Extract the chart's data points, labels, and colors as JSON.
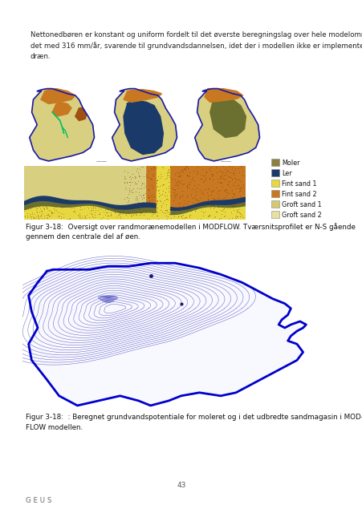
{
  "body_text": "Nettonedbøren er konstant og uniform fordelt til det øverste beregningslag over hele modelområ-\ndet med 316 mm/år, svarende til grundvandsdannelsen, idet der i modellen ikke er implementeret\ndræn.",
  "fig_caption_1": "Figur 3-18:  Oversigt over randmorænemodellen i MODFLOW. Tværsnitsprofilet er N-S gående\ngennem den centrale del af øen.",
  "fig_caption_2": "Figur 3-18:  : Beregnet grundvandspotentiale for moleret og i det udbredte sandmagasin i MOD-\nFLOW modellen.",
  "page_number": "43",
  "footer_text": "G E U S",
  "legend_items": [
    "Moler",
    "Ler",
    "Fint sand 1",
    "Fint sand 2",
    "Groft sand 1",
    "Groft sand 2"
  ],
  "legend_colors": [
    "#8B8040",
    "#1a3a6a",
    "#e8d840",
    "#c87820",
    "#d4c870",
    "#e8e0a0"
  ],
  "background_color": "#ffffff",
  "text_color": "#222222",
  "caption_color": "#111111"
}
